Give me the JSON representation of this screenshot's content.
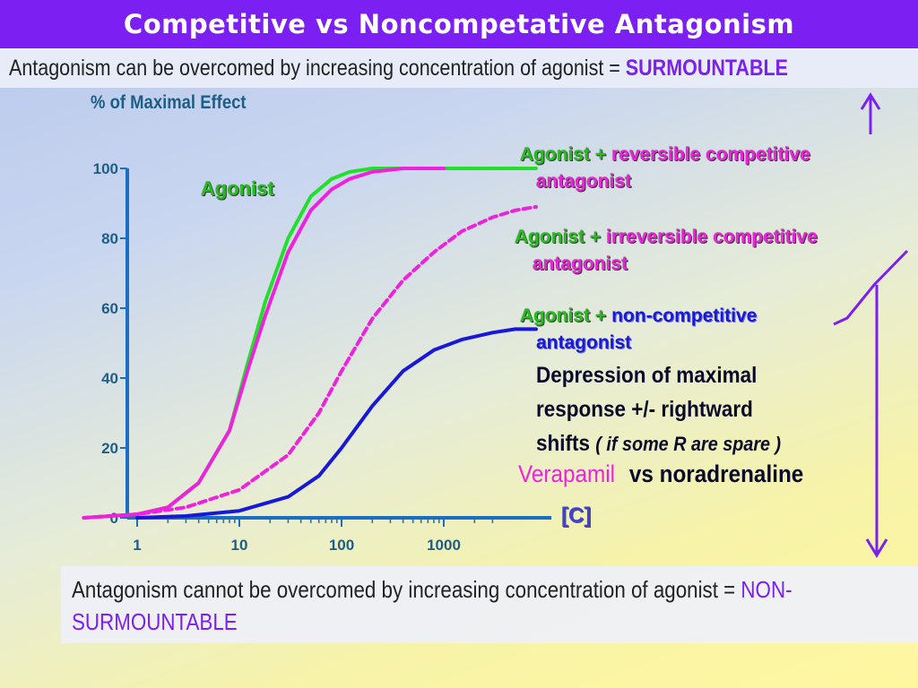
{
  "title": "Competitive vs Noncompetative Antagonism",
  "top_note": {
    "text": "Antagonism can be overcomed by increasing concentration of agonist = ",
    "highlight": "SURMOUNTABLE"
  },
  "bottom_note": {
    "text": "Antagonism cannot be overcomed by increasing concentration of agonist = ",
    "highlight": "NON-SURMOUNTABLE"
  },
  "labels": {
    "agonist": "Agonist",
    "rev_comp_1": "Agonist +",
    "rev_comp_2": "reversible competitive",
    "rev_comp_3": "antagonist",
    "irr_comp_1": "Agonist +",
    "irr_comp_2": "irreversible competitive",
    "irr_comp_3": "antagonist",
    "noncomp_1": "Agonist +",
    "noncomp_2": "non-competitive",
    "noncomp_3": "antagonist",
    "depression_1": "Depression of maximal",
    "depression_2": "response +/- rightward",
    "depression_3": "shifts",
    "depression_note": "( if some R are spare )",
    "verapamil": "Verapamil",
    "vs_noradrenaline": "vs noradrenaline"
  },
  "colors": {
    "agonist": "#22e02a",
    "competitive": "#ee22dd",
    "noncompetitive": "#1818d8",
    "axis": "#1a6fc4",
    "arrow": "#7b1ff2",
    "title_bg": "#7b1ff2"
  },
  "chart_data": {
    "type": "line",
    "ylabel": "% of Maximal Effect",
    "xlabel": "[C]",
    "x_scale": "log",
    "ylim": [
      0,
      100
    ],
    "x_ticks": [
      "1",
      "10",
      "100",
      "1000"
    ],
    "y_ticks": [
      "0",
      "20",
      "40",
      "60",
      "80",
      "100"
    ],
    "series": [
      {
        "name": "Agonist",
        "color": "#22e02a",
        "dash": "solid",
        "x": [
          0.3,
          1,
          2,
          4,
          8,
          12,
          18,
          30,
          50,
          80,
          120,
          200,
          400,
          1000,
          3000,
          8000
        ],
        "y": [
          0,
          1,
          3,
          10,
          25,
          44,
          62,
          80,
          92,
          97,
          99,
          100,
          100,
          100,
          100,
          100
        ]
      },
      {
        "name": "Agonist + reversible competitive antagonist",
        "color": "#ee22dd",
        "dash": "solid",
        "x": [
          0.3,
          1,
          2,
          4,
          8,
          12,
          18,
          30,
          50,
          80,
          120,
          200,
          400,
          1000
        ],
        "y": [
          0,
          1,
          3,
          10,
          25,
          42,
          58,
          76,
          88,
          94,
          97,
          99,
          100,
          100
        ]
      },
      {
        "name": "Agonist + irreversible competitive antagonist",
        "color": "#ee22dd",
        "dash": "dashed",
        "x": [
          0.3,
          1,
          3,
          10,
          30,
          60,
          100,
          200,
          400,
          800,
          1500,
          3000,
          5000,
          8000
        ],
        "y": [
          0,
          1,
          3,
          8,
          18,
          30,
          42,
          57,
          68,
          76,
          82,
          86,
          88,
          89
        ]
      },
      {
        "name": "Agonist + non-competitive antagonist",
        "color": "#1818d8",
        "dash": "solid",
        "x": [
          1,
          3,
          10,
          30,
          60,
          100,
          200,
          400,
          800,
          1500,
          3000,
          5000,
          8000
        ],
        "y": [
          0,
          0.5,
          2,
          6,
          12,
          20,
          32,
          42,
          48,
          51,
          53,
          54,
          54
        ]
      }
    ]
  }
}
